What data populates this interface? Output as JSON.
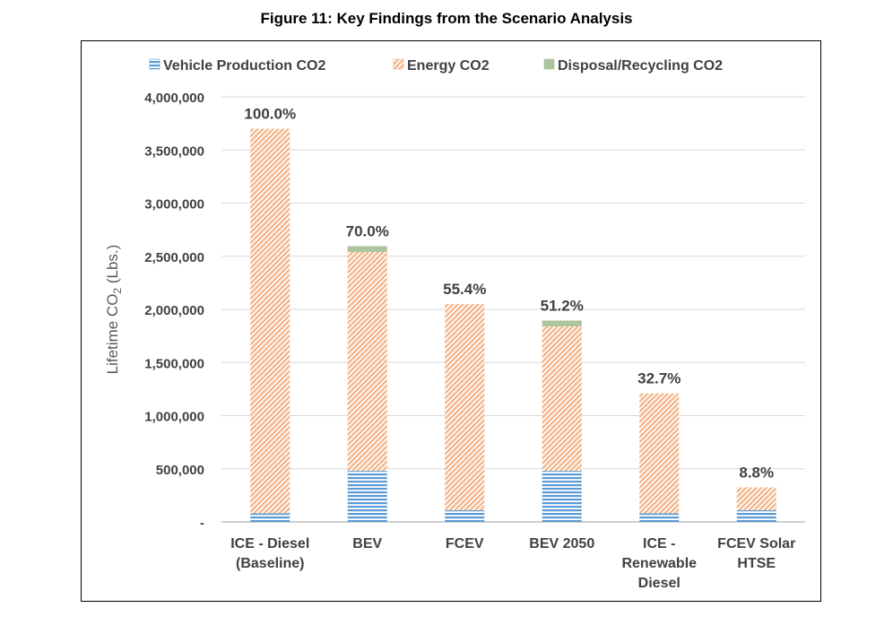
{
  "figure_title": "Figure 11:  Key Findings from the Scenario Analysis",
  "chart_data": {
    "type": "bar",
    "stacked": true,
    "ylabel_main": "Lifetime CO",
    "ylabel_sub": "2",
    "ylabel_tail": " (Lbs.)",
    "ylim": [
      0,
      4000000
    ],
    "yticks": [
      0,
      500000,
      1000000,
      1500000,
      2000000,
      2500000,
      3000000,
      3500000,
      4000000
    ],
    "ytick_labels": [
      "-",
      "500,000",
      "1,000,000",
      "1,500,000",
      "2,000,000",
      "2,500,000",
      "3,000,000",
      "3,500,000",
      "4,000,000"
    ],
    "grid": true,
    "legend_position": "top",
    "categories": [
      [
        "ICE - Diesel",
        "(Baseline)"
      ],
      [
        "BEV"
      ],
      [
        "FCEV"
      ],
      [
        "BEV 2050"
      ],
      [
        "ICE -",
        "Renewable",
        "Diesel"
      ],
      [
        "FCEV Solar",
        "HTSE"
      ]
    ],
    "series": [
      {
        "name": "Vehicle Production CO2",
        "color": "#5b9bd5",
        "pattern": "horizontal-stripes",
        "values": [
          80000,
          480000,
          110000,
          480000,
          80000,
          110000
        ]
      },
      {
        "name": "Energy  CO2",
        "color": "#f4b183",
        "pattern": "diagonal-hatch",
        "values": [
          3620000,
          2060000,
          1940000,
          1360000,
          1130000,
          215000
        ]
      },
      {
        "name": "Disposal/Recycling CO2",
        "color": "#a9c29a",
        "pattern": "solid",
        "values": [
          0,
          55000,
          0,
          55000,
          0,
          0
        ]
      }
    ],
    "data_labels": [
      "100.0%",
      "70.0%",
      "55.4%",
      "51.2%",
      "32.7%",
      "8.8%"
    ]
  }
}
